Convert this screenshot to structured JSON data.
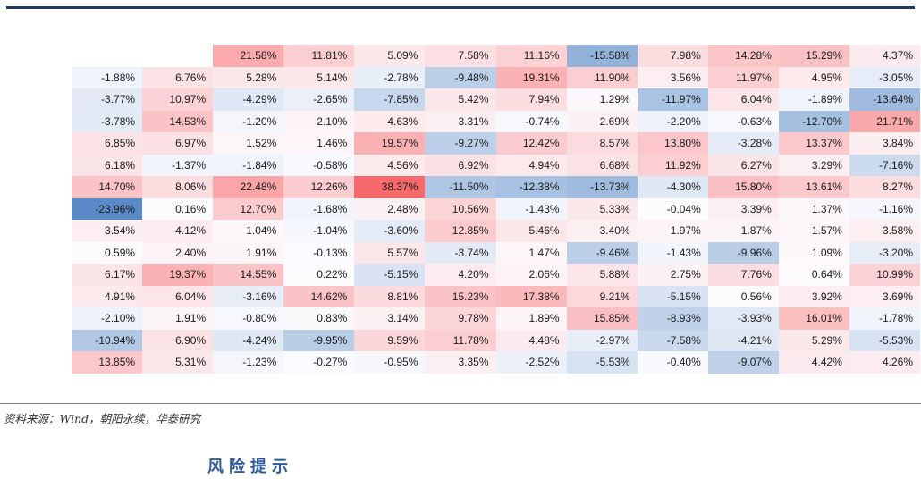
{
  "page": {
    "top_rule_color": "#203864",
    "source_note": "资料来源：Wind，朝阳永续，华泰研究",
    "risk_heading": "风险提示",
    "risk_heading_color": "#2E5B9B"
  },
  "chart_data": {
    "type": "heatmap",
    "value_unit": "%",
    "layout": {
      "columns": 12,
      "rows": 15,
      "gridlines": false,
      "text_align": "right"
    },
    "color_scale": {
      "positive_max": 38.37,
      "negative_min": -23.96,
      "max_color": "#F8696B",
      "mid_color": "#FCFCFF",
      "min_color": "#5A8AC6"
    },
    "rows": [
      [
        null,
        null,
        21.58,
        11.81,
        5.09,
        7.58,
        11.16,
        -15.58,
        7.98,
        14.28,
        15.29,
        4.37
      ],
      [
        -1.88,
        6.76,
        5.28,
        5.14,
        -2.78,
        -9.48,
        19.31,
        11.9,
        3.56,
        11.97,
        4.95,
        -3.05
      ],
      [
        -3.77,
        10.97,
        -4.29,
        -2.65,
        -7.85,
        5.42,
        7.94,
        1.29,
        -11.97,
        6.04,
        -1.89,
        -13.64
      ],
      [
        -3.78,
        14.53,
        -1.2,
        2.1,
        4.63,
        3.31,
        -0.74,
        2.69,
        -2.2,
        -0.63,
        -12.7,
        21.71
      ],
      [
        6.85,
        6.97,
        1.52,
        1.46,
        19.57,
        -9.27,
        12.42,
        8.57,
        13.8,
        -3.28,
        13.37,
        3.84
      ],
      [
        6.18,
        -1.37,
        -1.84,
        -0.58,
        4.56,
        6.92,
        4.94,
        6.68,
        11.92,
        6.27,
        3.29,
        -7.16
      ],
      [
        14.7,
        8.06,
        22.48,
        12.26,
        38.37,
        -11.5,
        -12.38,
        -13.73,
        -4.3,
        15.8,
        13.61,
        8.27
      ],
      [
        -23.96,
        0.16,
        12.7,
        -1.68,
        2.48,
        10.56,
        -1.43,
        5.33,
        -0.04,
        3.39,
        1.37,
        -1.16
      ],
      [
        3.54,
        4.12,
        1.04,
        -1.04,
        -3.6,
        12.85,
        5.46,
        3.4,
        1.97,
        1.87,
        1.57,
        3.58
      ],
      [
        0.59,
        2.4,
        1.91,
        -0.13,
        5.57,
        -3.74,
        1.47,
        -9.46,
        -1.43,
        -9.96,
        1.09,
        -3.2
      ],
      [
        6.17,
        19.37,
        14.55,
        0.22,
        -5.15,
        4.2,
        2.06,
        5.88,
        2.75,
        7.76,
        0.64,
        10.99
      ],
      [
        4.91,
        6.04,
        -3.16,
        14.62,
        8.81,
        15.23,
        17.38,
        9.21,
        -5.15,
        0.56,
        3.92,
        3.69
      ],
      [
        -2.1,
        1.91,
        -0.8,
        0.83,
        3.14,
        9.78,
        1.89,
        15.85,
        -8.93,
        -3.93,
        16.01,
        -1.78
      ],
      [
        -10.94,
        6.9,
        -4.24,
        -9.95,
        9.59,
        11.78,
        4.48,
        -2.97,
        -7.58,
        -4.21,
        5.29,
        -5.53
      ],
      [
        13.85,
        5.31,
        -1.23,
        -0.27,
        -0.95,
        3.35,
        -2.52,
        -5.53,
        -0.4,
        -9.07,
        4.42,
        4.26
      ]
    ]
  }
}
